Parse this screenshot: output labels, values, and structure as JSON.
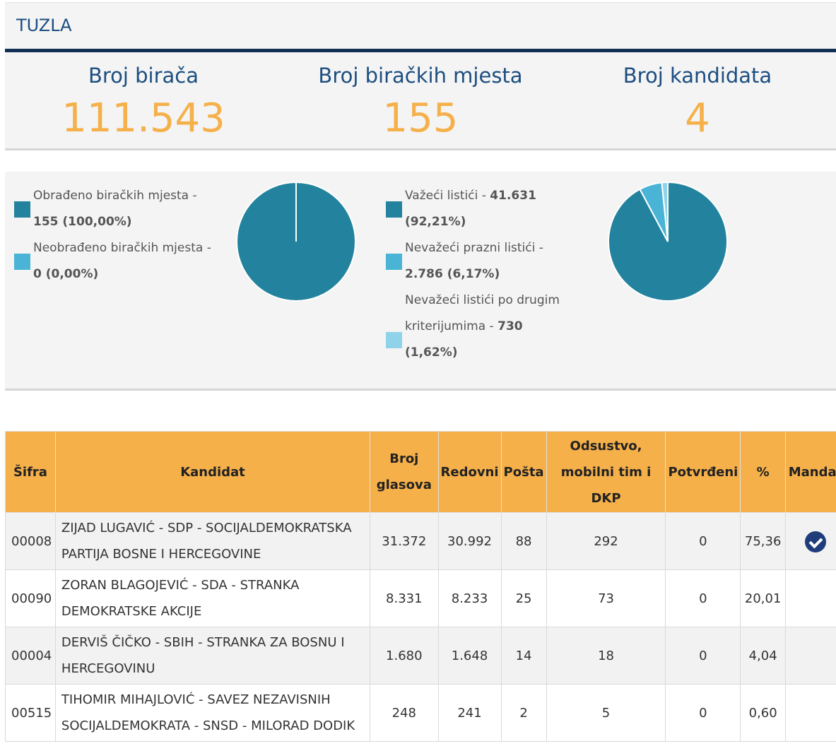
{
  "header": {
    "title": "TUZLA"
  },
  "stats": [
    {
      "label": "Broj birača",
      "value": "111.543"
    },
    {
      "label": "Broj biračkih mjesta",
      "value": "155"
    },
    {
      "label": "Broj kandidata",
      "value": "4"
    }
  ],
  "chart1": {
    "legend": [
      {
        "text": "Obrađeno biračkih mjesta -",
        "value": "155 (100,00%)",
        "color": "#23839e"
      },
      {
        "text": "Neobrađeno biračkih mjesta -",
        "value": "0 (0,00%)",
        "color": "#4ab4d6"
      }
    ]
  },
  "chart2": {
    "legend": [
      {
        "text": "Važeći listići -",
        "value_inline": "41.631",
        "value": "(92,21%)",
        "color": "#23839e"
      },
      {
        "text": "Nevažeći prazni listići -",
        "value": "2.786 (6,17%)",
        "color": "#4ab4d6"
      },
      {
        "text1": "Nevažeći listići po drugim",
        "text2": "kriterijumima -",
        "value_inline": "730",
        "value": "(1,62%)",
        "color": "#8fd3ea"
      }
    ]
  },
  "chart_data": [
    {
      "type": "pie",
      "categories": [
        "Obrađeno biračkih mjesta",
        "Neobrađeno biračkih mjesta"
      ],
      "values": [
        155,
        0
      ],
      "colors": [
        "#23839e",
        "#4ab4d6"
      ]
    },
    {
      "type": "pie",
      "categories": [
        "Važeći listići",
        "Nevažeći prazni listići",
        "Nevažeći listići po drugim kriterijumima"
      ],
      "values": [
        41631,
        2786,
        730
      ],
      "colors": [
        "#23839e",
        "#4ab4d6",
        "#8fd3ea"
      ]
    }
  ],
  "table": {
    "headers": {
      "code": "Šifra",
      "candidate": "Kandidat",
      "votes1": "Broj",
      "votes2": "glasova",
      "regular": "Redovni",
      "mail": "Pošta",
      "absent1": "Odsustvo,",
      "absent2": "mobilni tim i",
      "absent3": "DKP",
      "confirmed": "Potvrđeni",
      "pct": "%",
      "mandate": "Mandat"
    },
    "rows": [
      {
        "code": "00008",
        "name1": "ZIJAD LUGAVIĆ - SDP - SOCIJALDEMOKRATSKA",
        "name2": "PARTIJA BOSNE I HERCEGOVINE",
        "votes": "31.372",
        "regular": "30.992",
        "mail": "88",
        "absent": "292",
        "confirmed": "0",
        "pct": "75,36",
        "mandate": true
      },
      {
        "code": "00090",
        "name1": "ZORAN BLAGOJEVIĆ - SDA - STRANKA",
        "name2": "DEMOKRATSKE AKCIJE",
        "votes": "8.331",
        "regular": "8.233",
        "mail": "25",
        "absent": "73",
        "confirmed": "0",
        "pct": "20,01",
        "mandate": false
      },
      {
        "code": "00004",
        "name1": "DERVIŠ ČIČKO - SBIH - STRANKA ZA BOSNU I",
        "name2": "HERCEGOVINU",
        "votes": "1.680",
        "regular": "1.648",
        "mail": "14",
        "absent": "18",
        "confirmed": "0",
        "pct": "4,04",
        "mandate": false
      },
      {
        "code": "00515",
        "name1": "TIHOMIR MIHAJLOVIĆ - SAVEZ NEZAVISNIH",
        "name2": "SOCIJALDEMOKRATA - SNSD - MILORAD DODIK",
        "votes": "248",
        "regular": "241",
        "mail": "2",
        "absent": "5",
        "confirmed": "0",
        "pct": "0,60",
        "mandate": false
      }
    ]
  }
}
